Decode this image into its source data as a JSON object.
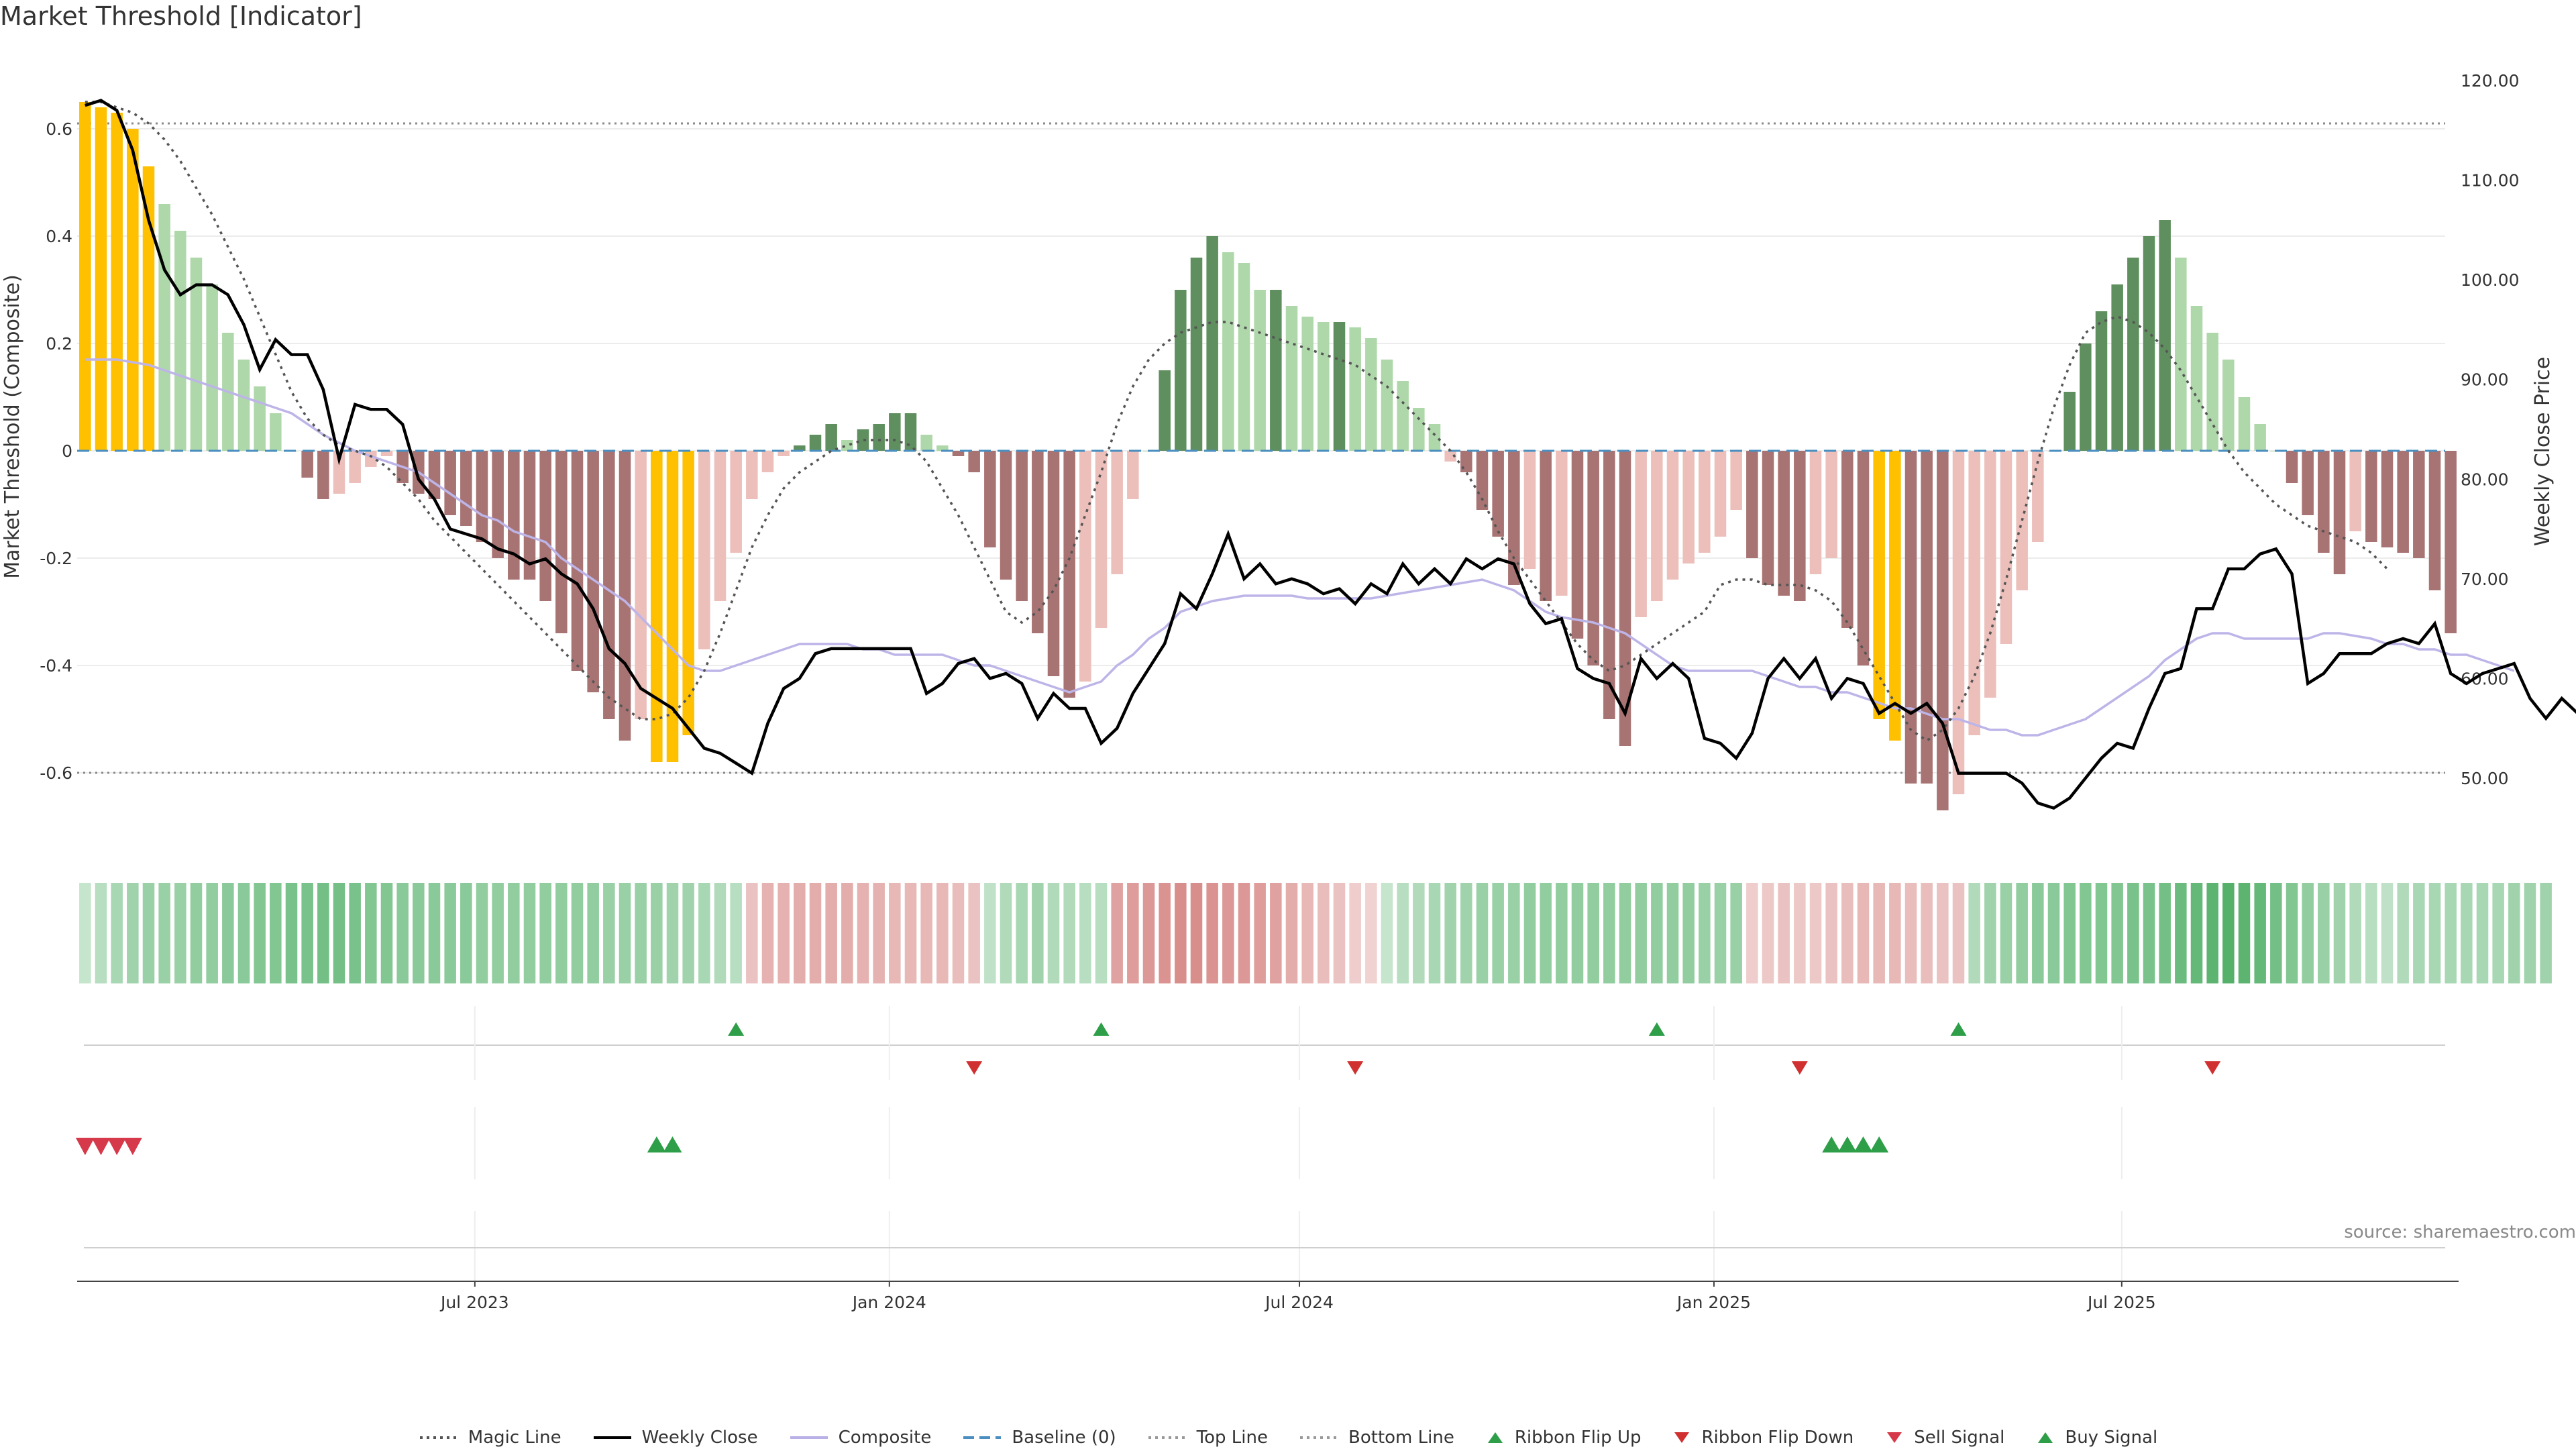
{
  "title": "Market Threshold [Indicator]",
  "source": "source: sharemaestro.com",
  "chart_data": {
    "type": "bar",
    "ylabel_left": "Market Threshold (Composite)",
    "ylabel_right": "Weekly Close Price",
    "ylim_left": [
      -0.75,
      0.72
    ],
    "ylim_right": [
      44.0,
      121.0
    ],
    "yticks_left": [
      "0.6",
      "0.4",
      "0.2",
      "0",
      "-0.2",
      "-0.4",
      "-0.6"
    ],
    "yticks_left_values": [
      0.6,
      0.4,
      0.2,
      0,
      -0.2,
      -0.4,
      -0.6
    ],
    "yticks_right": [
      "120.00",
      "110.00",
      "100.00",
      "90.00",
      "80.00",
      "70.00",
      "60.00",
      "50.00"
    ],
    "yticks_right_values": [
      120,
      110,
      100,
      90,
      80,
      70,
      60,
      50
    ],
    "x_start": "2023-01-09",
    "x_end": "2025-11-24",
    "xticks": [
      {
        "date": "2023-07-01",
        "label": "Jul 2023"
      },
      {
        "date": "2024-01-01",
        "label": "Jan 2024"
      },
      {
        "date": "2024-07-01",
        "label": "Jul 2024"
      },
      {
        "date": "2025-01-01",
        "label": "Jan 2025"
      },
      {
        "date": "2025-07-01",
        "label": "Jul 2025"
      }
    ],
    "top_line": 0.61,
    "bottom_line": -0.6,
    "composite_bars": [
      0.65,
      0.64,
      0.63,
      0.6,
      0.53,
      0.46,
      0.41,
      0.36,
      0.31,
      0.22,
      0.17,
      0.12,
      0.07,
      0,
      -0.05,
      -0.09,
      -0.08,
      -0.06,
      -0.03,
      -0.01,
      -0.06,
      -0.08,
      -0.09,
      -0.12,
      -0.14,
      -0.17,
      -0.2,
      -0.24,
      -0.24,
      -0.28,
      -0.34,
      -0.41,
      -0.45,
      -0.5,
      -0.54,
      -0.5,
      -0.58,
      -0.58,
      -0.53,
      -0.37,
      -0.28,
      -0.19,
      -0.09,
      -0.04,
      -0.01,
      0.01,
      0.03,
      0.05,
      0.02,
      0.04,
      0.05,
      0.07,
      0.07,
      0.03,
      0.01,
      -0.01,
      -0.04,
      -0.18,
      -0.24,
      -0.28,
      -0.34,
      -0.42,
      -0.46,
      -0.43,
      -0.33,
      -0.23,
      -0.09,
      0,
      0.15,
      0.3,
      0.36,
      0.4,
      0.37,
      0.35,
      0.3,
      0.3,
      0.27,
      0.25,
      0.24,
      0.24,
      0.23,
      0.21,
      0.17,
      0.13,
      0.08,
      0.05,
      -0.02,
      -0.04,
      -0.11,
      -0.16,
      -0.25,
      -0.22,
      -0.28,
      -0.27,
      -0.35,
      -0.4,
      -0.5,
      -0.55,
      -0.31,
      -0.28,
      -0.24,
      -0.21,
      -0.19,
      -0.16,
      -0.11,
      -0.2,
      -0.25,
      -0.27,
      -0.28,
      -0.23,
      -0.2,
      -0.33,
      -0.4,
      -0.5,
      -0.54,
      -0.62,
      -0.62,
      -0.67,
      -0.64,
      -0.53,
      -0.46,
      -0.36,
      -0.26,
      -0.17,
      0,
      0.11,
      0.2,
      0.26,
      0.31,
      0.36,
      0.4,
      0.43,
      0.36,
      0.27,
      0.22,
      0.17,
      0.1,
      0.05,
      0,
      -0.06,
      -0.12,
      -0.19,
      -0.23,
      -0.15,
      -0.17,
      -0.18,
      -0.19,
      -0.2,
      -0.26,
      -0.34
    ],
    "weekly_close": [
      117.5,
      118.0,
      117.0,
      113.0,
      106.0,
      101.0,
      98.5,
      99.5,
      99.5,
      98.5,
      95.5,
      91.0,
      94.0,
      92.5,
      92.5,
      89.0,
      82.0,
      87.5,
      87.0,
      87.0,
      85.5,
      80.0,
      78.0,
      75.0,
      74.5,
      74.0,
      73.0,
      72.5,
      71.5,
      72.0,
      70.5,
      69.5,
      67.0,
      63.0,
      61.5,
      59.0,
      58.0,
      57.0,
      55.0,
      53.0,
      52.5,
      51.5,
      50.5,
      55.5,
      59.0,
      60.0,
      62.5,
      63.0,
      63.0,
      63.0,
      63.0,
      63.0,
      63.0,
      58.5,
      59.5,
      61.5,
      62.0,
      60.0,
      60.5,
      59.5,
      56.0,
      58.5,
      57.0,
      57.0,
      53.5,
      55.0,
      58.5,
      61.0,
      63.5,
      68.5,
      67.0,
      70.5,
      74.5,
      70.0,
      71.5,
      69.5,
      70.0,
      69.5,
      68.5,
      69.0,
      67.5,
      69.5,
      68.5,
      71.5,
      69.5,
      71.0,
      69.5,
      72.0,
      71.0,
      72.0,
      71.5,
      67.5,
      65.5,
      66.0,
      61.0,
      60.0,
      59.5,
      56.5,
      62.0,
      60.0,
      61.5,
      60.0,
      54.0,
      53.5,
      52.0,
      54.5,
      60.0,
      62.0,
      60.0,
      62.0,
      58.0,
      60.0,
      59.5,
      56.5,
      57.5,
      56.5,
      57.5,
      55.5,
      50.5,
      50.5,
      50.5,
      50.5,
      49.5,
      47.5,
      47.0,
      48.0,
      50.0,
      52.0,
      53.5,
      53.0,
      57.0,
      60.5,
      61.0,
      67.0,
      67.0,
      71.0,
      71.0,
      72.5,
      73.0,
      70.5,
      59.5,
      60.5,
      62.5,
      62.5,
      62.5,
      63.5,
      64.0,
      63.5,
      65.5,
      60.5,
      59.5,
      60.5,
      61.0,
      61.5,
      58.0,
      56.0,
      58.0,
      56.5,
      55.0
    ],
    "composite_line": [
      0.17,
      0.17,
      0.17,
      0.165,
      0.16,
      0.15,
      0.14,
      0.13,
      0.12,
      0.11,
      0.1,
      0.09,
      0.08,
      0.07,
      0.05,
      0.03,
      0.015,
      0,
      -0.01,
      -0.02,
      -0.03,
      -0.04,
      -0.06,
      -0.08,
      -0.1,
      -0.12,
      -0.13,
      -0.15,
      -0.16,
      -0.17,
      -0.2,
      -0.22,
      -0.24,
      -0.26,
      -0.28,
      -0.31,
      -0.34,
      -0.37,
      -0.4,
      -0.41,
      -0.41,
      -0.4,
      -0.39,
      -0.38,
      -0.37,
      -0.36,
      -0.36,
      -0.36,
      -0.36,
      -0.37,
      -0.37,
      -0.38,
      -0.38,
      -0.38,
      -0.38,
      -0.39,
      -0.4,
      -0.4,
      -0.41,
      -0.42,
      -0.43,
      -0.44,
      -0.45,
      -0.44,
      -0.43,
      -0.4,
      -0.38,
      -0.35,
      -0.33,
      -0.3,
      -0.29,
      -0.28,
      -0.275,
      -0.27,
      -0.27,
      -0.27,
      -0.27,
      -0.275,
      -0.275,
      -0.275,
      -0.275,
      -0.275,
      -0.27,
      -0.265,
      -0.26,
      -0.255,
      -0.25,
      -0.245,
      -0.24,
      -0.25,
      -0.26,
      -0.28,
      -0.3,
      -0.31,
      -0.315,
      -0.32,
      -0.33,
      -0.34,
      -0.36,
      -0.38,
      -0.4,
      -0.41,
      -0.41,
      -0.41,
      -0.41,
      -0.41,
      -0.42,
      -0.43,
      -0.44,
      -0.44,
      -0.45,
      -0.45,
      -0.46,
      -0.47,
      -0.48,
      -0.48,
      -0.49,
      -0.5,
      -0.5,
      -0.51,
      -0.52,
      -0.52,
      -0.53,
      -0.53,
      -0.52,
      -0.51,
      -0.5,
      -0.48,
      -0.46,
      -0.44,
      -0.42,
      -0.39,
      -0.37,
      -0.35,
      -0.34,
      -0.34,
      -0.35,
      -0.35,
      -0.35,
      -0.35,
      -0.35,
      -0.34,
      -0.34,
      -0.345,
      -0.35,
      -0.36,
      -0.36,
      -0.37,
      -0.37,
      -0.38,
      -0.38,
      -0.39,
      -0.4,
      -0.41
    ],
    "magic_line": [
      0.65,
      0.65,
      0.64,
      0.63,
      0.61,
      0.58,
      0.54,
      0.49,
      0.44,
      0.38,
      0.32,
      0.25,
      0.18,
      0.11,
      0.06,
      0.03,
      0.01,
      0,
      -0.01,
      -0.03,
      -0.06,
      -0.09,
      -0.13,
      -0.16,
      -0.19,
      -0.22,
      -0.25,
      -0.28,
      -0.31,
      -0.34,
      -0.37,
      -0.4,
      -0.43,
      -0.46,
      -0.48,
      -0.5,
      -0.5,
      -0.49,
      -0.46,
      -0.41,
      -0.34,
      -0.26,
      -0.18,
      -0.12,
      -0.07,
      -0.04,
      -0.02,
      0,
      0.01,
      0.02,
      0.02,
      0.02,
      0.01,
      -0.02,
      -0.07,
      -0.12,
      -0.18,
      -0.24,
      -0.3,
      -0.32,
      -0.3,
      -0.26,
      -0.2,
      -0.12,
      -0.04,
      0.05,
      0.12,
      0.17,
      0.2,
      0.22,
      0.23,
      0.24,
      0.24,
      0.23,
      0.22,
      0.21,
      0.2,
      0.19,
      0.18,
      0.17,
      0.16,
      0.14,
      0.12,
      0.09,
      0.06,
      0.03,
      0,
      -0.04,
      -0.09,
      -0.15,
      -0.2,
      -0.24,
      -0.28,
      -0.32,
      -0.36,
      -0.39,
      -0.41,
      -0.4,
      -0.38,
      -0.36,
      -0.34,
      -0.32,
      -0.3,
      -0.25,
      -0.24,
      -0.24,
      -0.25,
      -0.25,
      -0.25,
      -0.26,
      -0.28,
      -0.32,
      -0.37,
      -0.42,
      -0.47,
      -0.52,
      -0.54,
      -0.52,
      -0.48,
      -0.42,
      -0.34,
      -0.24,
      -0.13,
      -0.02,
      0.08,
      0.16,
      0.22,
      0.24,
      0.25,
      0.24,
      0.22,
      0.19,
      0.15,
      0.1,
      0.05,
      0,
      -0.04,
      -0.07,
      -0.1,
      -0.12,
      -0.14,
      -0.15,
      -0.16,
      -0.17,
      -0.19,
      -0.22
    ],
    "ribbon_values": [
      0.15,
      0.25,
      0.35,
      0.4,
      0.45,
      0.45,
      0.45,
      0.5,
      0.5,
      0.55,
      0.55,
      0.6,
      0.6,
      0.65,
      0.65,
      0.7,
      0.7,
      0.65,
      0.6,
      0.6,
      0.55,
      0.55,
      0.55,
      0.55,
      0.55,
      0.5,
      0.5,
      0.5,
      0.5,
      0.5,
      0.5,
      0.5,
      0.5,
      0.45,
      0.45,
      0.45,
      0.45,
      0.4,
      0.4,
      0.35,
      0.3,
      0.25,
      -0.35,
      -0.5,
      -0.5,
      -0.55,
      -0.55,
      -0.55,
      -0.55,
      -0.5,
      -0.5,
      -0.45,
      -0.45,
      -0.45,
      -0.45,
      -0.4,
      -0.35,
      0.2,
      0.3,
      0.35,
      0.4,
      0.3,
      0.3,
      0.25,
      0.25,
      -0.65,
      -0.7,
      -0.75,
      -0.8,
      -0.85,
      -0.85,
      -0.8,
      -0.75,
      -0.75,
      -0.7,
      -0.65,
      -0.55,
      -0.45,
      -0.4,
      -0.35,
      -0.25,
      -0.2,
      0.15,
      0.25,
      0.3,
      0.35,
      0.4,
      0.4,
      0.45,
      0.45,
      0.45,
      0.5,
      0.5,
      0.5,
      0.5,
      0.5,
      0.5,
      0.5,
      0.5,
      0.5,
      0.5,
      0.5,
      0.45,
      0.45,
      0.45,
      -0.25,
      -0.3,
      -0.35,
      -0.3,
      -0.3,
      -0.35,
      -0.4,
      -0.45,
      -0.45,
      -0.45,
      -0.4,
      -0.4,
      -0.35,
      -0.35,
      0.3,
      0.4,
      0.45,
      0.5,
      0.55,
      0.55,
      0.6,
      0.6,
      0.6,
      0.6,
      0.65,
      0.65,
      0.7,
      0.75,
      0.8,
      0.85,
      0.9,
      0.85,
      0.8,
      0.7,
      0.6,
      0.5,
      0.45,
      0.4,
      0.3,
      0.25,
      0.2,
      0.3,
      0.35,
      0.35,
      0.35,
      0.35,
      0.35,
      0.35,
      0.4,
      0.4,
      0.4
    ],
    "ribbon_flip_up_idx": [
      41,
      64,
      99,
      118
    ],
    "ribbon_flip_down_idx": [
      56,
      80,
      108,
      134
    ],
    "sell_signal_idx": [
      0,
      1,
      2,
      3
    ],
    "buy_signal_idx": [
      36,
      37,
      110,
      111,
      112,
      113
    ]
  },
  "legend": [
    {
      "label": "Magic Line",
      "kind": "dotted",
      "color": "#555555"
    },
    {
      "label": "Weekly Close",
      "kind": "solid",
      "color": "#000000"
    },
    {
      "label": "Composite",
      "kind": "solid",
      "color": "#b8b0e6"
    },
    {
      "label": "Baseline (0)",
      "kind": "dashed",
      "color": "#4a8fc0"
    },
    {
      "label": "Top Line",
      "kind": "dotted",
      "color": "#999999"
    },
    {
      "label": "Bottom Line",
      "kind": "dotted",
      "color": "#999999"
    },
    {
      "label": "Ribbon Flip Up",
      "kind": "tri-up",
      "color": "#2e9e48"
    },
    {
      "label": "Ribbon Flip Down",
      "kind": "tri-down",
      "color": "#d03030"
    },
    {
      "label": "Sell Signal",
      "kind": "tri-down",
      "color": "#d63a4a"
    },
    {
      "label": "Buy Signal",
      "kind": "tri-up",
      "color": "#2e9e48"
    }
  ],
  "colors": {
    "extreme_bar": "#ffc000",
    "pos_strong": "#5f8f5f",
    "pos_weak": "#afd8aa",
    "neg_strong": "#a87373",
    "neg_weak": "#ecbfbb",
    "ribbon_pos": "#42a85a",
    "ribbon_neg": "#d27b78"
  }
}
